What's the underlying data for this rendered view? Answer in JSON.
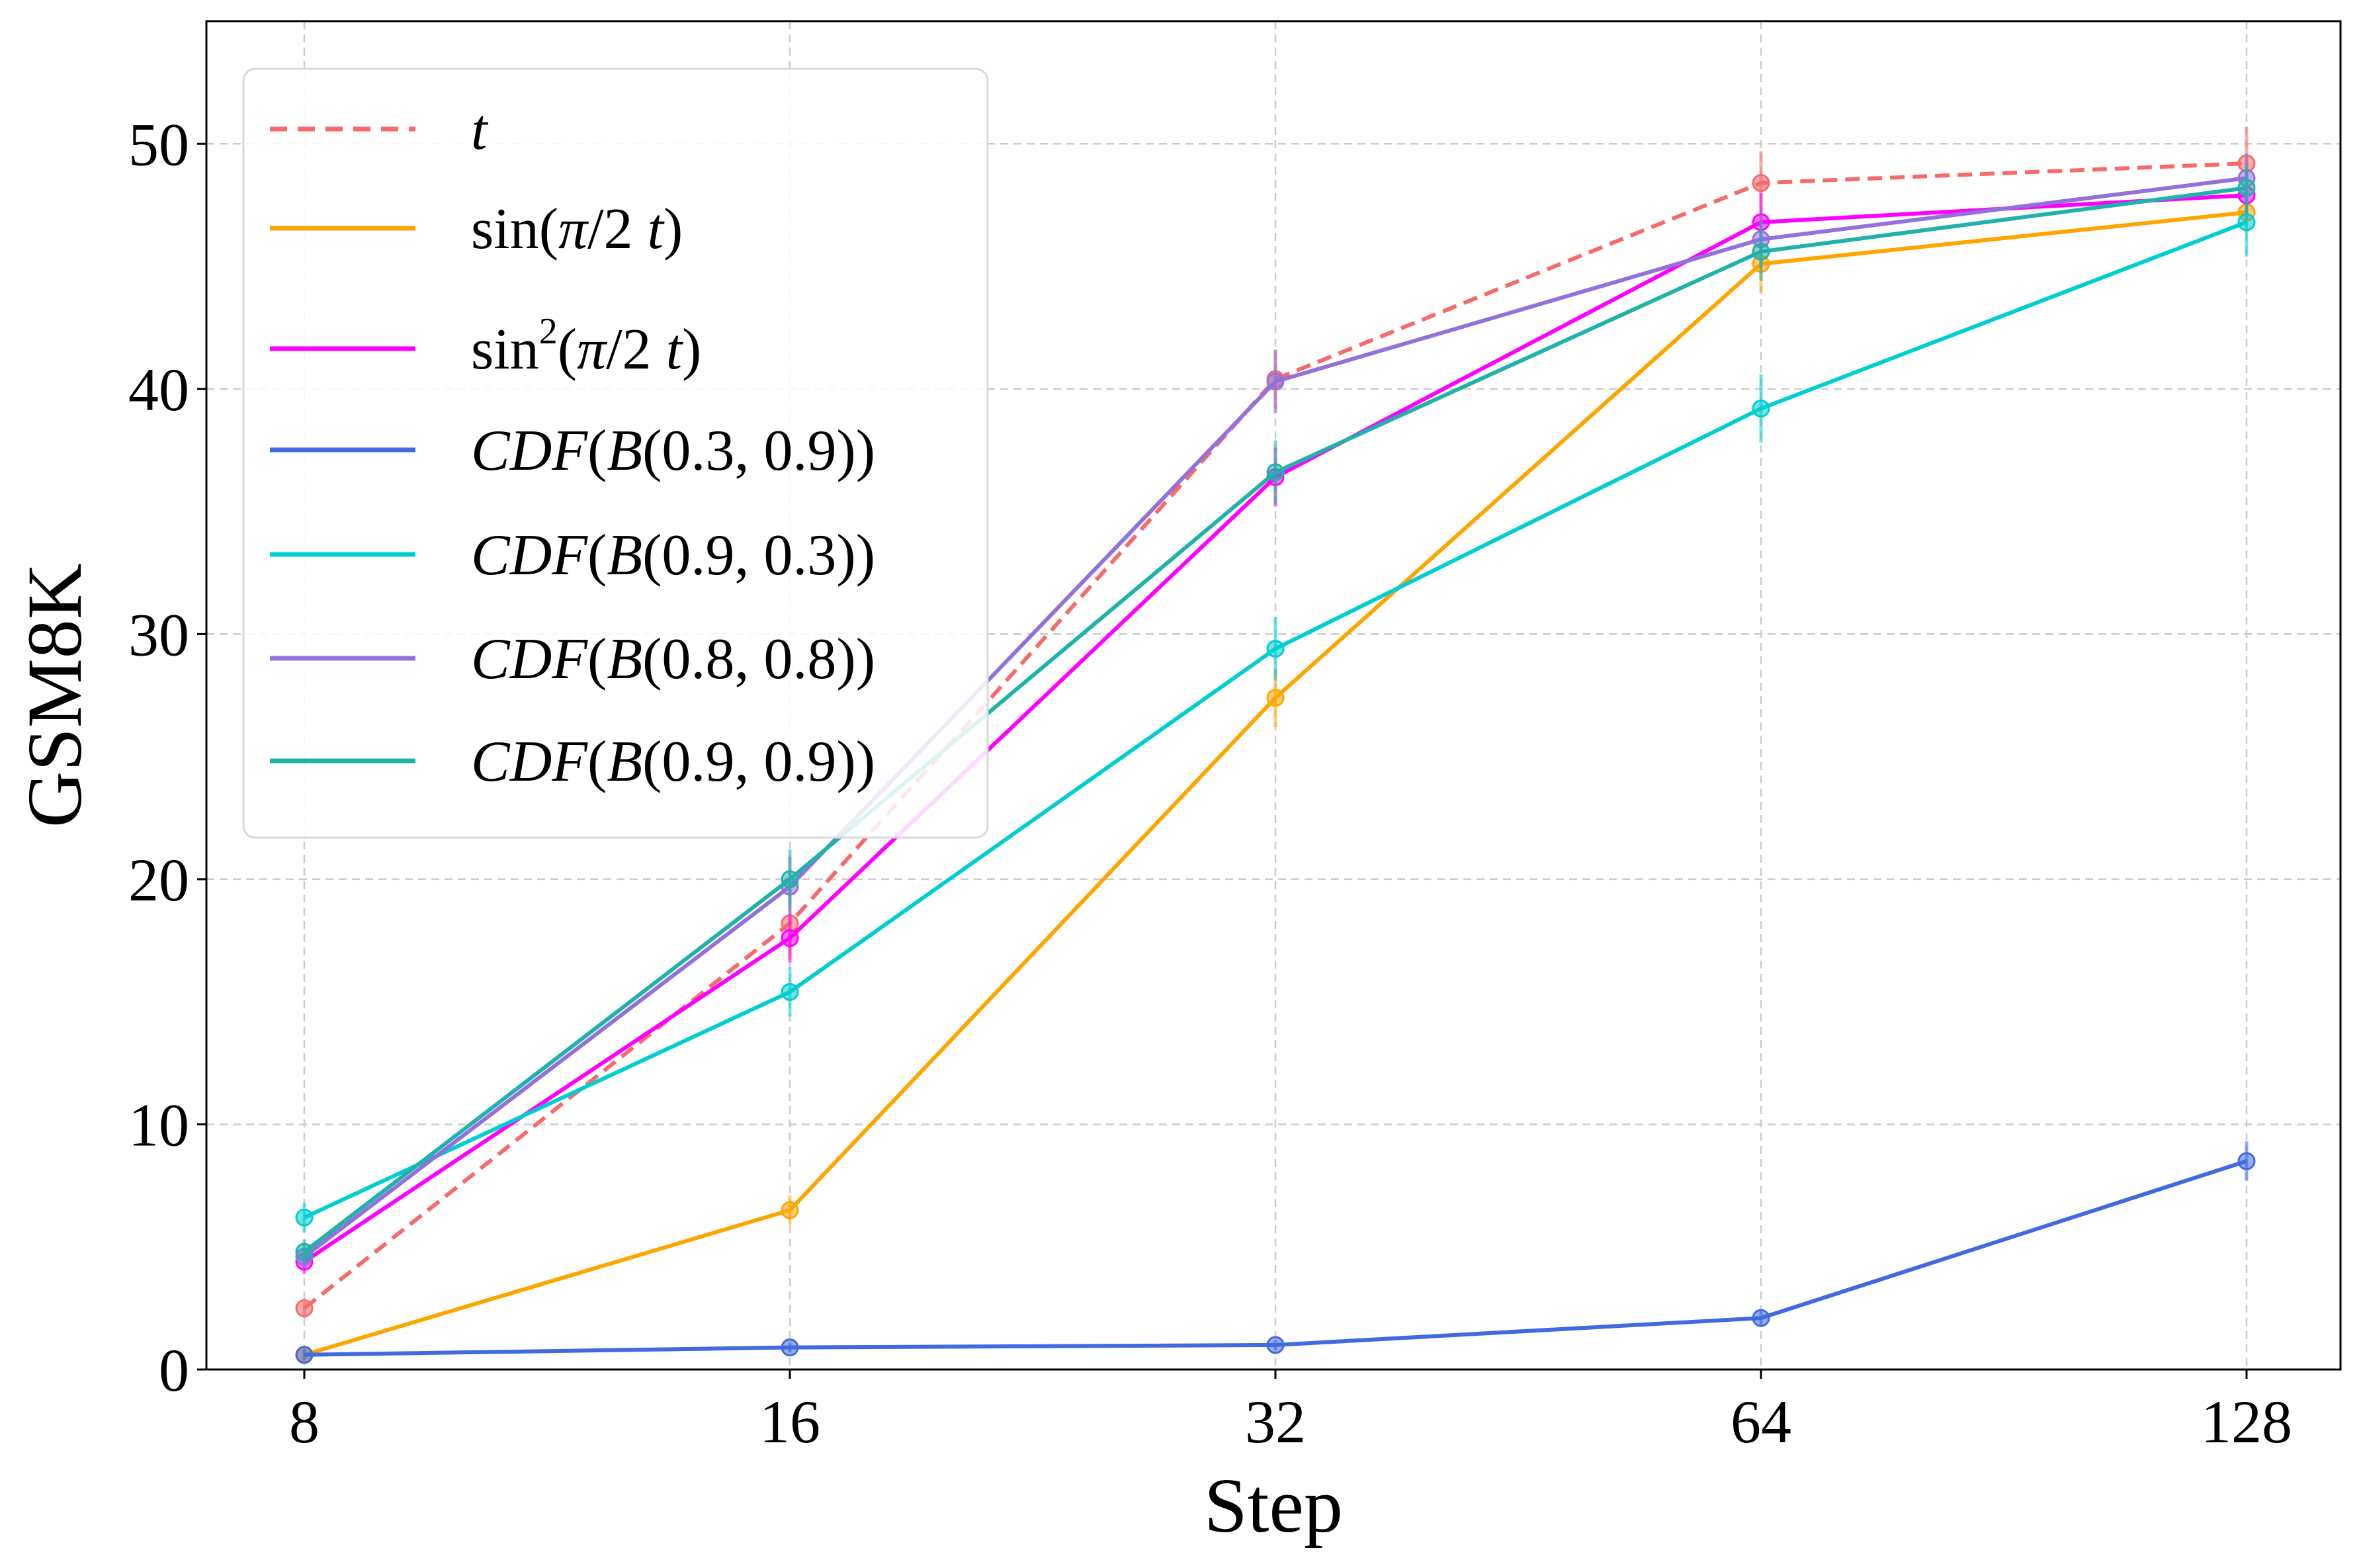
{
  "chart_data": {
    "type": "line",
    "title": "",
    "xlabel": "Step",
    "ylabel": "GSM8K",
    "x": [
      8,
      16,
      32,
      64,
      128
    ],
    "x_tick_labels": [
      "8",
      "16",
      "32",
      "64",
      "128"
    ],
    "x_scale": "log2",
    "ylim": [
      0,
      55
    ],
    "y_ticks": [
      0,
      10,
      20,
      30,
      40,
      50
    ],
    "y_tick_labels": [
      "0",
      "10",
      "20",
      "30",
      "40",
      "50"
    ],
    "grid": true,
    "legend_position": "upper-left",
    "series": [
      {
        "key": "t",
        "name": "t",
        "legend": {
          "parts": [
            {
              "text": "t",
              "italic": true
            }
          ]
        },
        "color": "#f86a6a",
        "dashed": true,
        "values": [
          2.5,
          18.2,
          40.4,
          48.4,
          49.2
        ],
        "errors": [
          0.4,
          1.5,
          1.2,
          1.3,
          1.5
        ]
      },
      {
        "key": "sin",
        "name": "sin(π/2 t)",
        "legend": {
          "parts": [
            {
              "text": "sin(",
              "italic": false
            },
            {
              "text": "π",
              "italic": true
            },
            {
              "text": "/2 ",
              "italic": false
            },
            {
              "text": "t",
              "italic": true
            },
            {
              "text": ")",
              "italic": false
            }
          ]
        },
        "color": "#ffa500",
        "dashed": false,
        "values": [
          0.6,
          6.5,
          27.4,
          45.1,
          47.2
        ],
        "errors": [
          0.3,
          0.6,
          1.2,
          1.2,
          0.8
        ]
      },
      {
        "key": "sin2",
        "name": "sin2(π/2 t)",
        "legend": {
          "parts": [
            {
              "text": "sin",
              "italic": false
            },
            {
              "text": "2",
              "italic": false,
              "sup": true
            },
            {
              "text": "(",
              "italic": false
            },
            {
              "text": "π",
              "italic": true
            },
            {
              "text": "/2 ",
              "italic": false
            },
            {
              "text": "t",
              "italic": true
            },
            {
              "text": ")",
              "italic": false
            }
          ]
        },
        "color": "#ff00ff",
        "dashed": false,
        "values": [
          4.4,
          17.6,
          36.4,
          46.8,
          47.9
        ],
        "errors": [
          0.5,
          1.0,
          1.2,
          1.2,
          1.0
        ]
      },
      {
        "key": "b0309",
        "name": "CDF(B(0.3, 0.9))",
        "legend": {
          "parts": [
            {
              "text": "CDF",
              "italic": true
            },
            {
              "text": "(",
              "italic": false
            },
            {
              "text": "B",
              "italic": true
            },
            {
              "text": "(0.3, 0.9))",
              "italic": false
            }
          ]
        },
        "color": "#4169e1",
        "dashed": false,
        "values": [
          0.6,
          0.9,
          1.0,
          2.1,
          8.5
        ],
        "errors": [
          0.2,
          0.2,
          0.2,
          0.3,
          0.8
        ]
      },
      {
        "key": "b0903",
        "name": "CDF(B(0.9, 0.3))",
        "legend": {
          "parts": [
            {
              "text": "CDF",
              "italic": true
            },
            {
              "text": "(",
              "italic": false
            },
            {
              "text": "B",
              "italic": true
            },
            {
              "text": "(0.9, 0.3))",
              "italic": false
            }
          ]
        },
        "color": "#00ced1",
        "dashed": false,
        "values": [
          6.2,
          15.4,
          29.4,
          39.2,
          46.8
        ],
        "errors": [
          0.6,
          1.0,
          1.3,
          1.4,
          1.4
        ]
      },
      {
        "key": "b0808",
        "name": "CDF(B(0.8, 0.8))",
        "legend": {
          "parts": [
            {
              "text": "CDF",
              "italic": true
            },
            {
              "text": "(",
              "italic": false
            },
            {
              "text": "B",
              "italic": true
            },
            {
              "text": "(0.8, 0.8))",
              "italic": false
            }
          ]
        },
        "color": "#9370db",
        "dashed": false,
        "values": [
          4.6,
          19.7,
          40.3,
          46.1,
          48.6
        ],
        "errors": [
          0.5,
          1.2,
          1.3,
          1.2,
          1.0
        ]
      },
      {
        "key": "b0909",
        "name": "CDF(B(0.9, 0.9))",
        "legend": {
          "parts": [
            {
              "text": "CDF",
              "italic": true
            },
            {
              "text": "(",
              "italic": false
            },
            {
              "text": "B",
              "italic": true
            },
            {
              "text": "(0.9, 0.9))",
              "italic": false
            }
          ]
        },
        "color": "#20b2aa",
        "dashed": false,
        "values": [
          4.8,
          20.0,
          36.6,
          45.6,
          48.2
        ],
        "errors": [
          0.5,
          1.2,
          1.3,
          1.2,
          1.0
        ]
      }
    ]
  }
}
